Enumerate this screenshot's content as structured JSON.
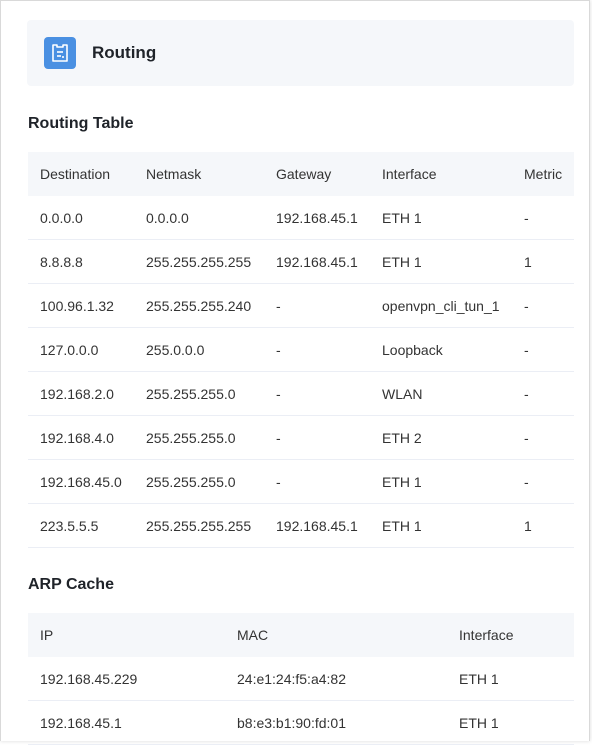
{
  "header": {
    "title": "Routing",
    "icon": "router-icon",
    "icon_color": "#4a90e2"
  },
  "routing_table": {
    "title": "Routing Table",
    "columns": [
      "Destination",
      "Netmask",
      "Gateway",
      "Interface",
      "Metric"
    ],
    "rows": [
      [
        "0.0.0.0",
        "0.0.0.0",
        "192.168.45.1",
        "ETH 1",
        "-"
      ],
      [
        "8.8.8.8",
        "255.255.255.255",
        "192.168.45.1",
        "ETH 1",
        "1"
      ],
      [
        "100.96.1.32",
        "255.255.255.240",
        "-",
        "openvpn_cli_tun_1",
        "-"
      ],
      [
        "127.0.0.0",
        "255.0.0.0",
        "-",
        "Loopback",
        "-"
      ],
      [
        "192.168.2.0",
        "255.255.255.0",
        "-",
        "WLAN",
        "-"
      ],
      [
        "192.168.4.0",
        "255.255.255.0",
        "-",
        "ETH 2",
        "-"
      ],
      [
        "192.168.45.0",
        "255.255.255.0",
        "-",
        "ETH 1",
        "-"
      ],
      [
        "223.5.5.5",
        "255.255.255.255",
        "192.168.45.1",
        "ETH 1",
        "1"
      ]
    ]
  },
  "arp_cache": {
    "title": "ARP Cache",
    "columns": [
      "IP",
      "MAC",
      "Interface"
    ],
    "rows": [
      [
        "192.168.45.229",
        "24:e1:24:f5:a4:82",
        "ETH 1"
      ],
      [
        "192.168.45.1",
        "b8:e3:b1:90:fd:01",
        "ETH 1"
      ]
    ]
  }
}
